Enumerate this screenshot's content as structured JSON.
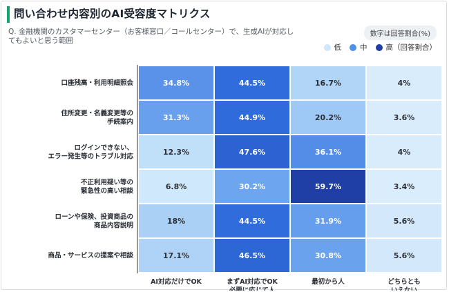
{
  "title": "問い合わせ内容別のAI受容度マトリクス",
  "question": "Q. 金融機関のカスタマーセンター（お客様窓口／コールセンター）で、生成AIが対応してもよいと思う範囲",
  "note": "数字は回答割合(%)",
  "legend": [
    {
      "label": "低",
      "color": "#cfe6fb"
    },
    {
      "label": "中",
      "color": "#4f90e8"
    },
    {
      "label": "高（回答割合）",
      "color": "#1f3ea6"
    }
  ],
  "colors": {
    "accent": "#16a36a",
    "low": "#e3f2fd",
    "high": "#1f3ea6"
  },
  "chart_data": {
    "type": "heatmap",
    "title": "問い合わせ内容別のAI受容度マトリクス",
    "rows": [
      [
        "口座残高・利用明細照会"
      ],
      [
        "住所変更・名義変更等の",
        "手続案内"
      ],
      [
        "ログインできない、",
        "エラー発生等のトラブル対応"
      ],
      [
        "不正利用疑い等の",
        "緊急性の高い相談"
      ],
      [
        "ローンや保険、投資商品の",
        "商品内容説明"
      ],
      [
        "商品・サービスの提案や相談"
      ]
    ],
    "columns": [
      [
        "AI対応だけでOK"
      ],
      [
        "まずAI対応でOK",
        "必要に応じて人"
      ],
      [
        "最初から人"
      ],
      [
        "どちらとも",
        "いえない"
      ]
    ],
    "values": [
      [
        34.8,
        44.5,
        16.7,
        4
      ],
      [
        31.3,
        44.9,
        20.2,
        3.6
      ],
      [
        12.3,
        47.6,
        36.1,
        4
      ],
      [
        6.8,
        30.2,
        59.7,
        3.4
      ],
      [
        18,
        44.5,
        31.9,
        5.6
      ],
      [
        17.1,
        46.5,
        30.8,
        5.6
      ]
    ],
    "value_suffix": "%"
  }
}
